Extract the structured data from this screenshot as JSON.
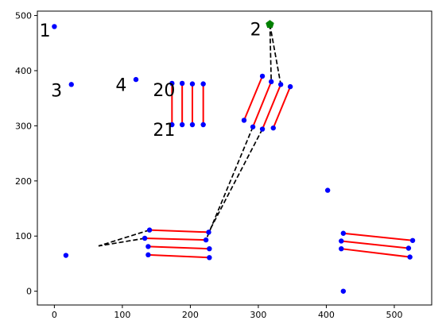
{
  "chart_data": {
    "type": "scatter",
    "title": "",
    "xlabel": "",
    "ylabel": "",
    "xlim": [
      -25,
      555
    ],
    "ylim": [
      -25,
      508
    ],
    "x_ticks": [
      0,
      100,
      200,
      300,
      400,
      500
    ],
    "y_ticks": [
      0,
      100,
      200,
      300,
      400,
      500
    ],
    "grid": false,
    "colors": {
      "point": "#0000ff",
      "segment": "#ff0000",
      "path": "#000000",
      "marker": "#008000"
    },
    "points": [
      {
        "x": 0,
        "y": 480
      },
      {
        "x": 25,
        "y": 375
      },
      {
        "x": 120,
        "y": 384
      },
      {
        "x": 17,
        "y": 65
      },
      {
        "x": 402,
        "y": 183
      },
      {
        "x": 425,
        "y": 0
      },
      {
        "x": 173,
        "y": 377
      },
      {
        "x": 188,
        "y": 377
      },
      {
        "x": 203,
        "y": 376
      },
      {
        "x": 219,
        "y": 376
      },
      {
        "x": 173,
        "y": 302
      },
      {
        "x": 188,
        "y": 302
      },
      {
        "x": 203,
        "y": 302
      },
      {
        "x": 219,
        "y": 302
      },
      {
        "x": 306,
        "y": 390
      },
      {
        "x": 319,
        "y": 380
      },
      {
        "x": 333,
        "y": 375
      },
      {
        "x": 347,
        "y": 371
      },
      {
        "x": 279,
        "y": 310
      },
      {
        "x": 292,
        "y": 298
      },
      {
        "x": 306,
        "y": 294
      },
      {
        "x": 322,
        "y": 296
      },
      {
        "x": 140,
        "y": 111
      },
      {
        "x": 133,
        "y": 96
      },
      {
        "x": 138,
        "y": 81
      },
      {
        "x": 138,
        "y": 66
      },
      {
        "x": 227,
        "y": 107
      },
      {
        "x": 223,
        "y": 93
      },
      {
        "x": 228,
        "y": 77
      },
      {
        "x": 228,
        "y": 61
      },
      {
        "x": 425,
        "y": 105
      },
      {
        "x": 422,
        "y": 91
      },
      {
        "x": 422,
        "y": 77
      },
      {
        "x": 527,
        "y": 92
      },
      {
        "x": 521,
        "y": 78
      },
      {
        "x": 523,
        "y": 62
      }
    ],
    "segments": [
      [
        [
          173,
          377
        ],
        [
          173,
          302
        ]
      ],
      [
        [
          188,
          377
        ],
        [
          188,
          302
        ]
      ],
      [
        [
          203,
          376
        ],
        [
          203,
          302
        ]
      ],
      [
        [
          219,
          376
        ],
        [
          219,
          302
        ]
      ],
      [
        [
          306,
          390
        ],
        [
          279,
          310
        ]
      ],
      [
        [
          319,
          380
        ],
        [
          292,
          298
        ]
      ],
      [
        [
          333,
          375
        ],
        [
          306,
          294
        ]
      ],
      [
        [
          347,
          371
        ],
        [
          322,
          296
        ]
      ],
      [
        [
          140,
          111
        ],
        [
          227,
          107
        ]
      ],
      [
        [
          133,
          96
        ],
        [
          223,
          93
        ]
      ],
      [
        [
          138,
          81
        ],
        [
          228,
          77
        ]
      ],
      [
        [
          138,
          66
        ],
        [
          228,
          61
        ]
      ],
      [
        [
          425,
          105
        ],
        [
          527,
          92
        ]
      ],
      [
        [
          422,
          91
        ],
        [
          521,
          78
        ]
      ],
      [
        [
          422,
          77
        ],
        [
          523,
          62
        ]
      ]
    ],
    "path": [
      [
        [
          317,
          484
        ],
        [
          319,
          380
        ]
      ],
      [
        [
          317,
          484
        ],
        [
          333,
          375
        ]
      ],
      [
        [
          306,
          294
        ],
        [
          227,
          107
        ]
      ],
      [
        [
          292,
          298
        ],
        [
          223,
          93
        ]
      ],
      [
        [
          140,
          111
        ],
        [
          65,
          82
        ]
      ],
      [
        [
          133,
          96
        ],
        [
          65,
          82
        ]
      ]
    ],
    "marker": {
      "x": 317,
      "y": 484,
      "shape": "pentagon"
    },
    "annotations": [
      {
        "text": "1",
        "x": -22,
        "y": 462
      },
      {
        "text": "2",
        "x": 288,
        "y": 464
      },
      {
        "text": "3",
        "x": -5,
        "y": 353
      },
      {
        "text": "4",
        "x": 90,
        "y": 363
      },
      {
        "text": "20",
        "x": 145,
        "y": 354
      },
      {
        "text": "21",
        "x": 145,
        "y": 282
      }
    ]
  }
}
